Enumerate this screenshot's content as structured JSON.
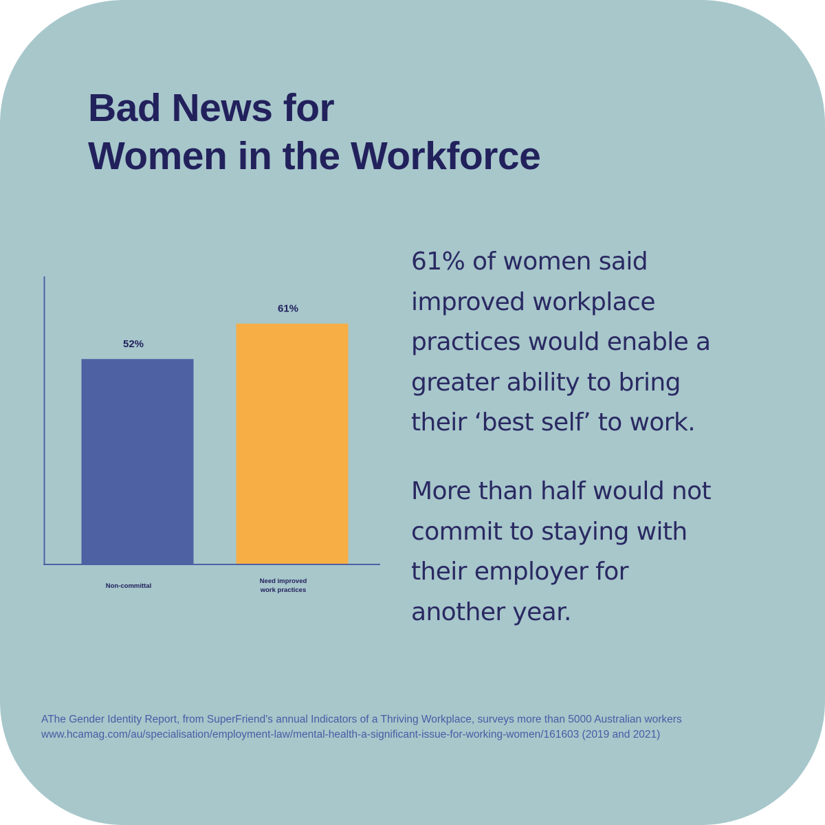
{
  "title": {
    "line1": "Bad News for",
    "line2": "Women in the Workforce"
  },
  "chart_data": {
    "type": "bar",
    "categories": [
      "Non-committal",
      "Need improved work practices"
    ],
    "category_label_lines": [
      [
        "Non-committal"
      ],
      [
        "Need improved",
        "work practices"
      ]
    ],
    "values": [
      52,
      61
    ],
    "data_labels": [
      "52%",
      "61%"
    ],
    "colors": [
      "#4e61a3",
      "#f6ae45"
    ],
    "ylim": [
      0,
      73
    ],
    "grid": false,
    "legend": "none"
  },
  "body": {
    "paragraph1": [
      "61% of women said",
      "improved workplace",
      "practices would enable a",
      "greater ability to bring",
      "their ‘best self’ to work."
    ],
    "paragraph2": [
      "More than half would not",
      "commit to staying with",
      "their employer for",
      "another year."
    ]
  },
  "footnote": {
    "line1": "AThe Gender Identity Report, from SuperFriend's annual Indicators of a Thriving Workplace, surveys more than 5000 Australian workers",
    "line2": "www.hcamag.com/au/specialisation/employment-law/mental-health-a-significant-issue-for-working-women/161603 (2019 and 2021)"
  },
  "colors": {
    "background": "#a7c7cb",
    "text": "#22215c",
    "axis": "#4e61a3",
    "footnote": "#4a5aa4"
  }
}
